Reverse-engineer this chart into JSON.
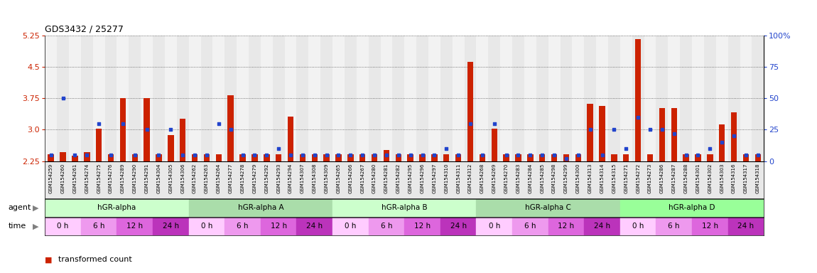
{
  "title": "GDS3432 / 25277",
  "samples": [
    "GSM154259",
    "GSM154260",
    "GSM154261",
    "GSM154274",
    "GSM154275",
    "GSM154276",
    "GSM154289",
    "GSM154290",
    "GSM154291",
    "GSM154304",
    "GSM154305",
    "GSM154306",
    "GSM154262",
    "GSM154263",
    "GSM154264",
    "GSM154277",
    "GSM154278",
    "GSM154279",
    "GSM154292",
    "GSM154293",
    "GSM154294",
    "GSM154307",
    "GSM154308",
    "GSM154309",
    "GSM154265",
    "GSM154266",
    "GSM154267",
    "GSM154280",
    "GSM154281",
    "GSM154282",
    "GSM154295",
    "GSM154296",
    "GSM154297",
    "GSM154310",
    "GSM154311",
    "GSM154312",
    "GSM154268",
    "GSM154269",
    "GSM154270",
    "GSM154283",
    "GSM154284",
    "GSM154285",
    "GSM154298",
    "GSM154299",
    "GSM154300",
    "GSM154313",
    "GSM154314",
    "GSM154315",
    "GSM154271",
    "GSM154272",
    "GSM154273",
    "GSM154286",
    "GSM154287",
    "GSM154288",
    "GSM154301",
    "GSM154302",
    "GSM154303",
    "GSM154316",
    "GSM154317",
    "GSM154318"
  ],
  "red_values": [
    2.42,
    2.47,
    2.37,
    2.47,
    3.02,
    2.42,
    3.76,
    2.42,
    3.76,
    2.42,
    2.87,
    3.27,
    2.42,
    2.42,
    2.42,
    3.82,
    2.42,
    2.42,
    2.42,
    2.42,
    3.32,
    2.42,
    2.42,
    2.42,
    2.42,
    2.42,
    2.42,
    2.42,
    2.52,
    2.42,
    2.42,
    2.42,
    2.42,
    2.42,
    2.42,
    4.62,
    2.42,
    3.02,
    2.42,
    2.42,
    2.42,
    2.42,
    2.42,
    2.42,
    2.42,
    3.62,
    3.57,
    2.42,
    2.42,
    5.17,
    2.42,
    3.52,
    3.52,
    2.42,
    2.42,
    2.42,
    3.12,
    3.42,
    2.42,
    2.42
  ],
  "blue_values": [
    5,
    50,
    5,
    5,
    30,
    5,
    30,
    5,
    25,
    5,
    25,
    5,
    5,
    5,
    30,
    25,
    5,
    5,
    5,
    10,
    5,
    5,
    5,
    5,
    5,
    5,
    5,
    5,
    5,
    5,
    5,
    5,
    5,
    10,
    5,
    30,
    5,
    30,
    5,
    5,
    5,
    5,
    5,
    2,
    5,
    25,
    5,
    25,
    10,
    35,
    25,
    25,
    22,
    5,
    5,
    10,
    15,
    20,
    5,
    5
  ],
  "agents": [
    {
      "label": "hGR-alpha",
      "start": 0,
      "end": 12,
      "color": "#ccffcc"
    },
    {
      "label": "hGR-alpha A",
      "start": 12,
      "end": 24,
      "color": "#aaddaa"
    },
    {
      "label": "hGR-alpha B",
      "start": 24,
      "end": 36,
      "color": "#ccffcc"
    },
    {
      "label": "hGR-alpha C",
      "start": 36,
      "end": 48,
      "color": "#aaddaa"
    },
    {
      "label": "hGR-alpha D",
      "start": 48,
      "end": 60,
      "color": "#99ff99"
    }
  ],
  "time_colors": [
    "#ffccff",
    "#ee99ee",
    "#dd66dd",
    "#bb33bb"
  ],
  "time_labels": [
    "0 h",
    "6 h",
    "12 h",
    "24 h"
  ],
  "ylim_left": [
    2.25,
    5.25
  ],
  "ylim_right": [
    0,
    100
  ],
  "yticks_left": [
    2.25,
    3.0,
    3.75,
    4.5,
    5.25
  ],
  "yticks_right": [
    0,
    25,
    50,
    75,
    100
  ],
  "red_color": "#cc2200",
  "blue_color": "#2244cc",
  "label_bg_color": "#cccccc"
}
